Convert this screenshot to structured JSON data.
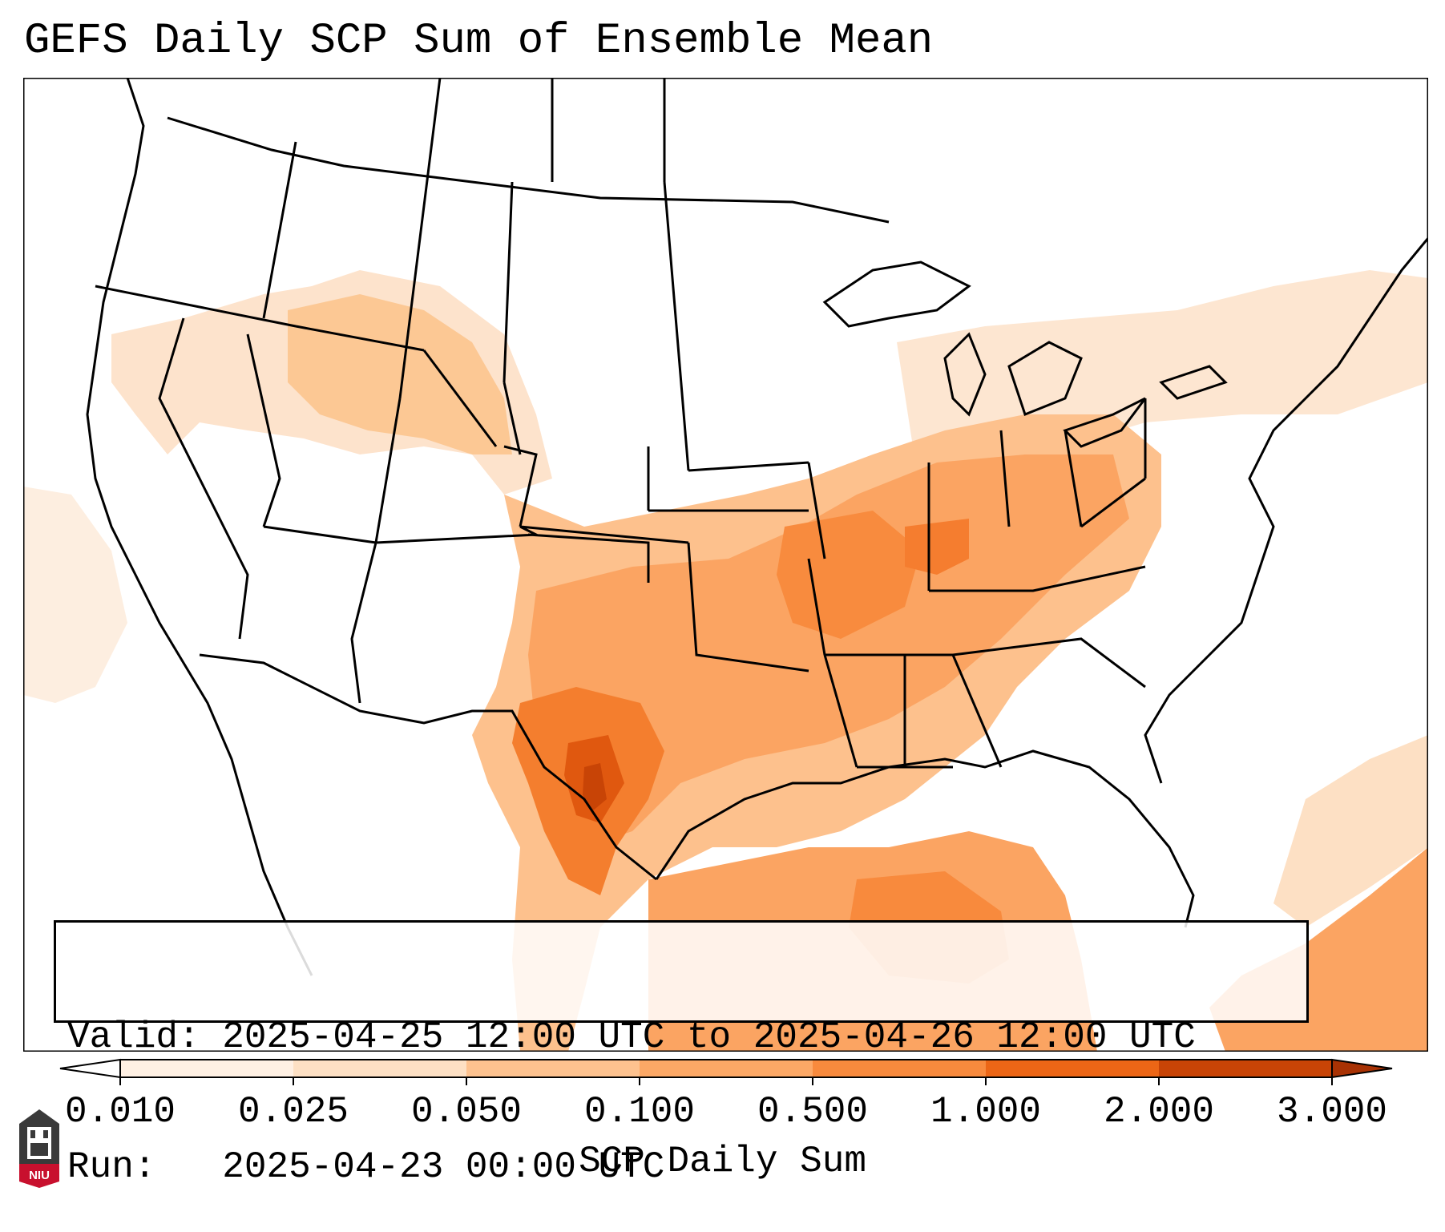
{
  "title": "GEFS Daily SCP Sum of Ensemble Mean",
  "valid_label": "Valid:",
  "valid_value": "2025-04-25 12:00 UTC to 2025-04-26 12:00 UTC",
  "run_label": "Run:",
  "run_value": "2025-04-23 00:00 UTC",
  "colorbar": {
    "label": "SCP Daily Sum",
    "ticks": [
      "0.010",
      "0.025",
      "0.050",
      "0.100",
      "0.500",
      "1.000",
      "2.000",
      "3.000"
    ],
    "colors": [
      "#fff0e3",
      "#fde0c4",
      "#fdc28f",
      "#fca866",
      "#f88a3d",
      "#ec6616",
      "#c84406"
    ]
  },
  "logo_text": "NIU",
  "colors": {
    "ocean_shade": "#fde8d8",
    "border": "#000000"
  }
}
